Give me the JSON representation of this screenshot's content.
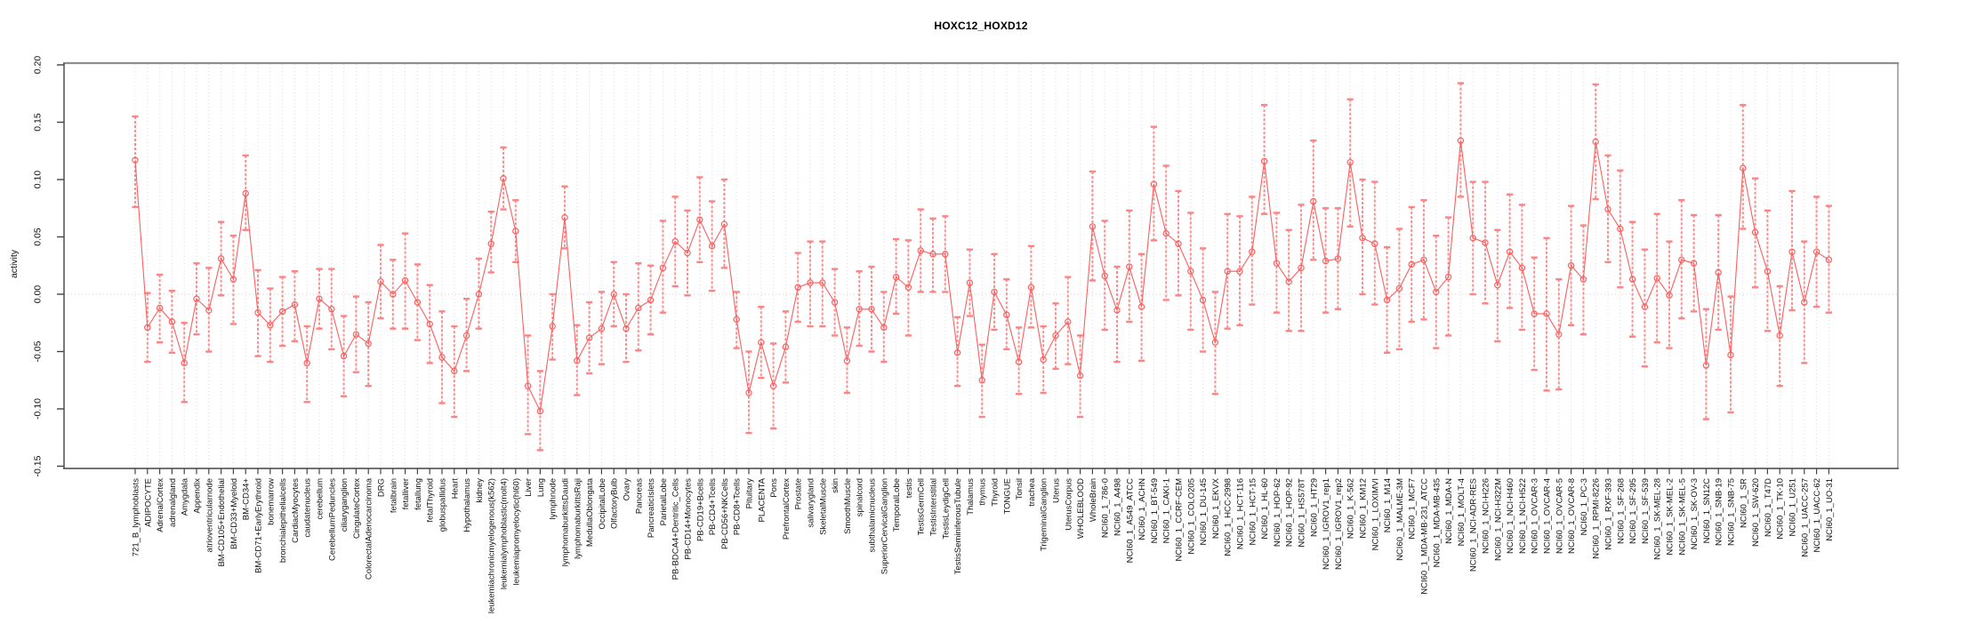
{
  "title": "HOXC12_HOXD12",
  "y_axis_label": "activity",
  "colors": {
    "series_line": "#fb5f5f",
    "point_stroke": "#fb5f5f",
    "errorbar_stem": "#fb9090",
    "errorbar_cap": "#fb8484",
    "grid": "#dcdcdc",
    "zero_line": "#cfcfcf",
    "border": "#8f8f8f",
    "axis": "#444444",
    "tick_label": "#111111"
  },
  "chart_data": {
    "type": "line",
    "title": "HOXC12_HOXD12",
    "xlabel": "",
    "ylabel": "activity",
    "ylim": [
      -0.15,
      0.2
    ],
    "ytick_labels": [
      "0.20",
      "0.15",
      "0.10",
      "0.05",
      "0.00",
      "-0.05",
      "-0.10",
      "-0.15"
    ],
    "ytick_values": [
      0.2,
      0.15,
      0.1,
      0.05,
      0.0,
      -0.05,
      -0.1,
      -0.15
    ],
    "grid": "vertical-dotted",
    "zero_line": true,
    "legend": "none",
    "marker": "open-circle",
    "error_bars": true,
    "categories": [
      "721_B_lymphoblasts",
      "ADIPOCYTE",
      "AdrenalCortex",
      "adrenalgland",
      "Amygdala",
      "Appendix",
      "atrioventricularnode",
      "BM-CD105+Endothelial",
      "BM-CD33+Myeloid",
      "BM-CD34+",
      "BM-CD71+EarlyErythroid",
      "bonemarrow",
      "bronchialepithelialcells",
      "CardiacMyocytes",
      "caudatenucleus",
      "cerebellum",
      "CerebellumPeduncles",
      "ciliaryganglion",
      "CingulateCortex",
      "ColorectalAdenocarcinoma",
      "DRG",
      "fetalbrain",
      "fetalliver",
      "fetallung",
      "fetalThyroid",
      "globuspallidus",
      "Heart",
      "Hypothalamus",
      "kidney",
      "leukemiachronicmyelogenous(k562)",
      "leukemialymphoblastic(molt4)",
      "leukemiapromyelocytic(hl60)",
      "Liver",
      "Lung",
      "lymphnode",
      "lymphomaburkittsDaudi",
      "lymphomaburkittsRaji",
      "MedullaOblongata",
      "OccipitalLobe",
      "OlfactoryBulb",
      "Ovary",
      "Pancreas",
      "PancreaticIslets",
      "ParietalLobe",
      "PB-BDCA4+Dentritic_Cells",
      "PB-CD14+Monocytes",
      "PB-CD19+Bcells",
      "PB-CD4+Tcells",
      "PB-CD56+NKCells",
      "PB-CD8+Tcells",
      "Pituitary",
      "PLACENTA",
      "Pons",
      "PrefrontalCortex",
      "Prostate",
      "salivarygland",
      "SkeletalMuscle",
      "skin",
      "SmoothMuscle",
      "spinalcord",
      "subthalamicnucleus",
      "SuperiorCervicalGanglion",
      "TemporalLobe",
      "testis",
      "TestisGermCell",
      "TestisInterstitial",
      "TestisLeydigCell",
      "TestisSeminiferousTubule",
      "Thalamus",
      "thymus",
      "Thyroid",
      "TONGUE",
      "Tonsil",
      "trachea",
      "TrigeminalGanglion",
      "Uterus",
      "UterusCorpus",
      "WHOLEBLOOD",
      "WholeBrain",
      "NCI60_1_786-0",
      "NCI60_1_A498",
      "NCI60_1_A549_ATCC",
      "NCI60_1_ACHN",
      "NCI60_1_BT-549",
      "NCI60_1_CAKI-1",
      "NCI60_1_CCRF-CEM",
      "NCI60_1_COLO205",
      "NCI60_1_DU-145",
      "NCI60_1_EKVX",
      "NCI60_1_HCC-2998",
      "NCI60_1_HCT-116",
      "NCI60_1_HCT-15",
      "NCI60_1_HL-60",
      "NCI60_1_HOP-62",
      "NCI60_1_HOP-92",
      "NCI60_1_HS578T",
      "NCI60_1_HT29",
      "NCI60_1_IGROV1_rep1",
      "NCI60_1_IGROV1_rep2",
      "NCI60_1_K-562",
      "NCI60_1_KM12",
      "NCI60_1_LOXIMVI",
      "NCI60_1_M14",
      "NCI60_1_MALME-3M",
      "NCI60_1_MCF7",
      "NCI60_1_MDA-MB-231_ATCC",
      "NCI60_1_MDA-MB-435",
      "NCI60_1_MDA-N",
      "NCI60_1_MOLT-4",
      "NCI60_1_NCI-ADR-RES",
      "NCI60_1_NCI-H226",
      "NCI60_1_NCI-H322M",
      "NCI60_1_NCI-H460",
      "NCI60_1_NCI-H522",
      "NCI60_1_OVCAR-3",
      "NCI60_1_OVCAR-4",
      "NCI60_1_OVCAR-5",
      "NCI60_1_OVCAR-8",
      "NCI60_1_PC-3",
      "NCI60_1_RPMI-8226",
      "NCI60_1_RXF-393",
      "NCI60_1_SF-268",
      "NCI60_1_SF-295",
      "NCI60_1_SF-539",
      "NCI60_1_SK-MEL-28",
      "NCI60_1_SK-MEL-2",
      "NCI60_1_SK-MEL-5",
      "NCI60_1_SK-OV-3",
      "NCI60_1_SN12C",
      "NCI60_1_SNB-19",
      "NCI60_1_SNB-75",
      "NCI60_1_SR",
      "NCI60_1_SW-620",
      "NCI60_1_T47D",
      "NCI60_1_TK-10",
      "NCI60_1_U251",
      "NCI60_1_UACC-257",
      "NCI60_1_UACC-62",
      "NCI60_1_UO-31"
    ],
    "series": [
      {
        "name": "activity",
        "values": [
          0.117,
          -0.029,
          -0.012,
          -0.024,
          -0.06,
          -0.004,
          -0.014,
          0.031,
          0.013,
          0.088,
          -0.016,
          -0.027,
          -0.015,
          -0.009,
          -0.06,
          -0.004,
          -0.013,
          -0.054,
          -0.035,
          -0.043,
          0.011,
          0.0,
          0.012,
          -0.007,
          -0.026,
          -0.055,
          -0.067,
          -0.036,
          0.0,
          0.044,
          0.101,
          0.055,
          -0.08,
          -0.102,
          -0.028,
          0.067,
          -0.058,
          -0.038,
          -0.03,
          0.0,
          -0.03,
          -0.012,
          -0.005,
          0.023,
          0.046,
          0.036,
          0.065,
          0.042,
          0.061,
          -0.022,
          -0.086,
          -0.042,
          -0.08,
          -0.046,
          0.006,
          0.01,
          0.01,
          -0.007,
          -0.058,
          -0.013,
          -0.013,
          -0.029,
          0.015,
          0.006,
          0.038,
          0.035,
          0.035,
          -0.051,
          0.01,
          -0.075,
          0.002,
          -0.018,
          -0.059,
          0.006,
          -0.057,
          -0.036,
          -0.024,
          -0.071,
          0.059,
          0.016,
          -0.014,
          0.024,
          -0.011,
          0.096,
          0.053,
          0.044,
          0.02,
          -0.005,
          -0.042,
          0.02,
          0.02,
          0.037,
          0.116,
          0.027,
          0.011,
          0.023,
          0.081,
          0.029,
          0.031,
          0.115,
          0.049,
          0.044,
          -0.005,
          0.005,
          0.026,
          0.03,
          0.002,
          0.015,
          0.134,
          0.049,
          0.045,
          0.008,
          0.037,
          0.023,
          -0.017,
          -0.017,
          -0.035,
          0.025,
          0.013,
          0.133,
          0.074,
          0.057,
          0.013,
          -0.011,
          0.014,
          -0.001,
          0.03,
          0.027,
          -0.062,
          0.019,
          -0.053,
          0.11,
          0.054,
          0.02,
          -0.036,
          0.037,
          -0.007,
          0.037,
          0.03
        ],
        "lower": [
          0.076,
          -0.059,
          -0.042,
          -0.051,
          -0.094,
          -0.035,
          -0.05,
          -0.001,
          -0.026,
          0.056,
          -0.054,
          -0.059,
          -0.045,
          -0.041,
          -0.094,
          -0.03,
          -0.048,
          -0.089,
          -0.068,
          -0.08,
          -0.021,
          -0.03,
          -0.03,
          -0.04,
          -0.06,
          -0.095,
          -0.107,
          -0.067,
          -0.03,
          0.019,
          0.074,
          0.028,
          -0.122,
          -0.136,
          -0.057,
          0.04,
          -0.088,
          -0.069,
          -0.061,
          -0.028,
          -0.059,
          -0.049,
          -0.035,
          -0.016,
          0.007,
          -0.001,
          0.028,
          0.003,
          0.023,
          -0.047,
          -0.121,
          -0.073,
          -0.117,
          -0.077,
          -0.024,
          -0.028,
          -0.028,
          -0.036,
          -0.086,
          -0.045,
          -0.05,
          -0.059,
          -0.017,
          -0.036,
          0.002,
          0.002,
          0.002,
          -0.08,
          -0.019,
          -0.107,
          -0.031,
          -0.048,
          -0.087,
          -0.029,
          -0.086,
          -0.065,
          -0.061,
          -0.107,
          0.012,
          -0.031,
          -0.059,
          -0.024,
          -0.058,
          0.047,
          -0.005,
          -0.001,
          -0.031,
          -0.05,
          -0.087,
          -0.03,
          -0.027,
          -0.009,
          0.07,
          -0.016,
          -0.032,
          -0.032,
          0.03,
          -0.016,
          -0.013,
          0.059,
          0.0,
          -0.009,
          -0.051,
          -0.048,
          -0.024,
          -0.022,
          -0.047,
          -0.036,
          0.085,
          0.0,
          -0.008,
          -0.041,
          -0.012,
          -0.031,
          -0.066,
          -0.084,
          -0.083,
          -0.027,
          -0.035,
          0.083,
          0.028,
          0.006,
          -0.037,
          -0.063,
          -0.042,
          -0.047,
          -0.021,
          -0.015,
          -0.109,
          -0.031,
          -0.103,
          0.057,
          0.006,
          -0.032,
          -0.08,
          -0.014,
          -0.06,
          -0.011,
          -0.016
        ],
        "upper": [
          0.155,
          0.001,
          0.017,
          0.003,
          -0.025,
          0.027,
          0.023,
          0.063,
          0.051,
          0.121,
          0.021,
          0.005,
          0.015,
          0.02,
          -0.028,
          0.022,
          0.022,
          -0.019,
          -0.002,
          -0.007,
          0.043,
          0.03,
          0.053,
          0.026,
          0.008,
          -0.015,
          -0.028,
          -0.004,
          0.031,
          0.072,
          0.128,
          0.082,
          -0.036,
          -0.067,
          0.0,
          0.094,
          -0.027,
          -0.007,
          0.002,
          0.028,
          0.0,
          0.027,
          0.025,
          0.064,
          0.085,
          0.073,
          0.102,
          0.081,
          0.1,
          0.002,
          -0.05,
          -0.011,
          -0.043,
          -0.015,
          0.036,
          0.046,
          0.046,
          0.022,
          -0.029,
          0.02,
          0.024,
          0.002,
          0.048,
          0.047,
          0.074,
          0.066,
          0.068,
          -0.02,
          0.039,
          -0.044,
          0.035,
          0.013,
          -0.029,
          0.042,
          -0.028,
          -0.008,
          0.015,
          -0.036,
          0.107,
          0.064,
          0.024,
          0.073,
          0.035,
          0.146,
          0.112,
          0.09,
          0.071,
          0.04,
          0.002,
          0.07,
          0.068,
          0.085,
          0.165,
          0.071,
          0.056,
          0.078,
          0.134,
          0.075,
          0.075,
          0.17,
          0.1,
          0.098,
          0.041,
          0.057,
          0.076,
          0.082,
          0.051,
          0.067,
          0.184,
          0.098,
          0.098,
          0.056,
          0.087,
          0.078,
          0.032,
          0.049,
          0.013,
          0.077,
          0.06,
          0.183,
          0.121,
          0.108,
          0.063,
          0.039,
          0.07,
          0.046,
          0.082,
          0.069,
          -0.013,
          0.069,
          -0.002,
          0.165,
          0.101,
          0.073,
          0.007,
          0.09,
          0.046,
          0.085,
          0.077
        ]
      }
    ]
  }
}
